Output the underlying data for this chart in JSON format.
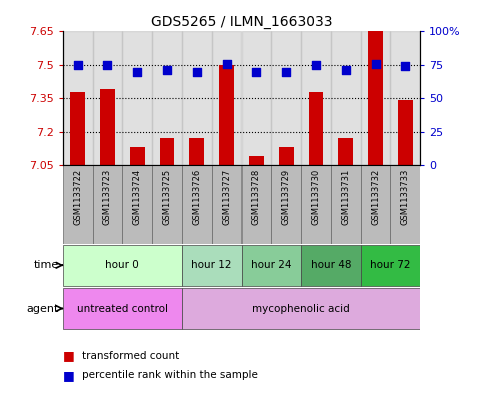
{
  "title": "GDS5265 / ILMN_1663033",
  "samples": [
    "GSM1133722",
    "GSM1133723",
    "GSM1133724",
    "GSM1133725",
    "GSM1133726",
    "GSM1133727",
    "GSM1133728",
    "GSM1133729",
    "GSM1133730",
    "GSM1133731",
    "GSM1133732",
    "GSM1133733"
  ],
  "transformed_count": [
    7.38,
    7.39,
    7.13,
    7.17,
    7.17,
    7.5,
    7.09,
    7.13,
    7.38,
    7.17,
    7.65,
    7.34
  ],
  "percentile_rank": [
    75,
    75,
    70,
    71,
    70,
    76,
    70,
    70,
    75,
    71,
    76,
    74
  ],
  "ylim_left": [
    7.05,
    7.65
  ],
  "ylim_right": [
    0,
    100
  ],
  "yticks_left": [
    7.05,
    7.2,
    7.35,
    7.5,
    7.65
  ],
  "yticks_right": [
    0,
    25,
    50,
    75,
    100
  ],
  "ytick_labels_left": [
    "7.05",
    "7.2",
    "7.35",
    "7.5",
    "7.65"
  ],
  "ytick_labels_right": [
    "0",
    "25",
    "50",
    "75",
    "100%"
  ],
  "hlines": [
    7.2,
    7.35,
    7.5
  ],
  "bar_color": "#cc0000",
  "dot_color": "#0000cc",
  "time_groups": [
    {
      "label": "hour 0",
      "start": 0,
      "end": 3,
      "color": "#ccffcc"
    },
    {
      "label": "hour 12",
      "start": 4,
      "end": 5,
      "color": "#aaddbb"
    },
    {
      "label": "hour 24",
      "start": 6,
      "end": 7,
      "color": "#88cc99"
    },
    {
      "label": "hour 48",
      "start": 8,
      "end": 9,
      "color": "#55aa66"
    },
    {
      "label": "hour 72",
      "start": 10,
      "end": 11,
      "color": "#33bb44"
    }
  ],
  "agent_groups": [
    {
      "label": "untreated control",
      "start": 0,
      "end": 3,
      "color": "#ee88ee"
    },
    {
      "label": "mycophenolic acid",
      "start": 4,
      "end": 11,
      "color": "#ddaadd"
    }
  ],
  "sample_bg_color": "#bbbbbb",
  "bar_width": 0.5,
  "dot_size": 35,
  "legend_bar_color": "#cc0000",
  "legend_dot_color": "#0000cc",
  "left_tick_color": "#cc0000",
  "right_tick_color": "#0000cc"
}
